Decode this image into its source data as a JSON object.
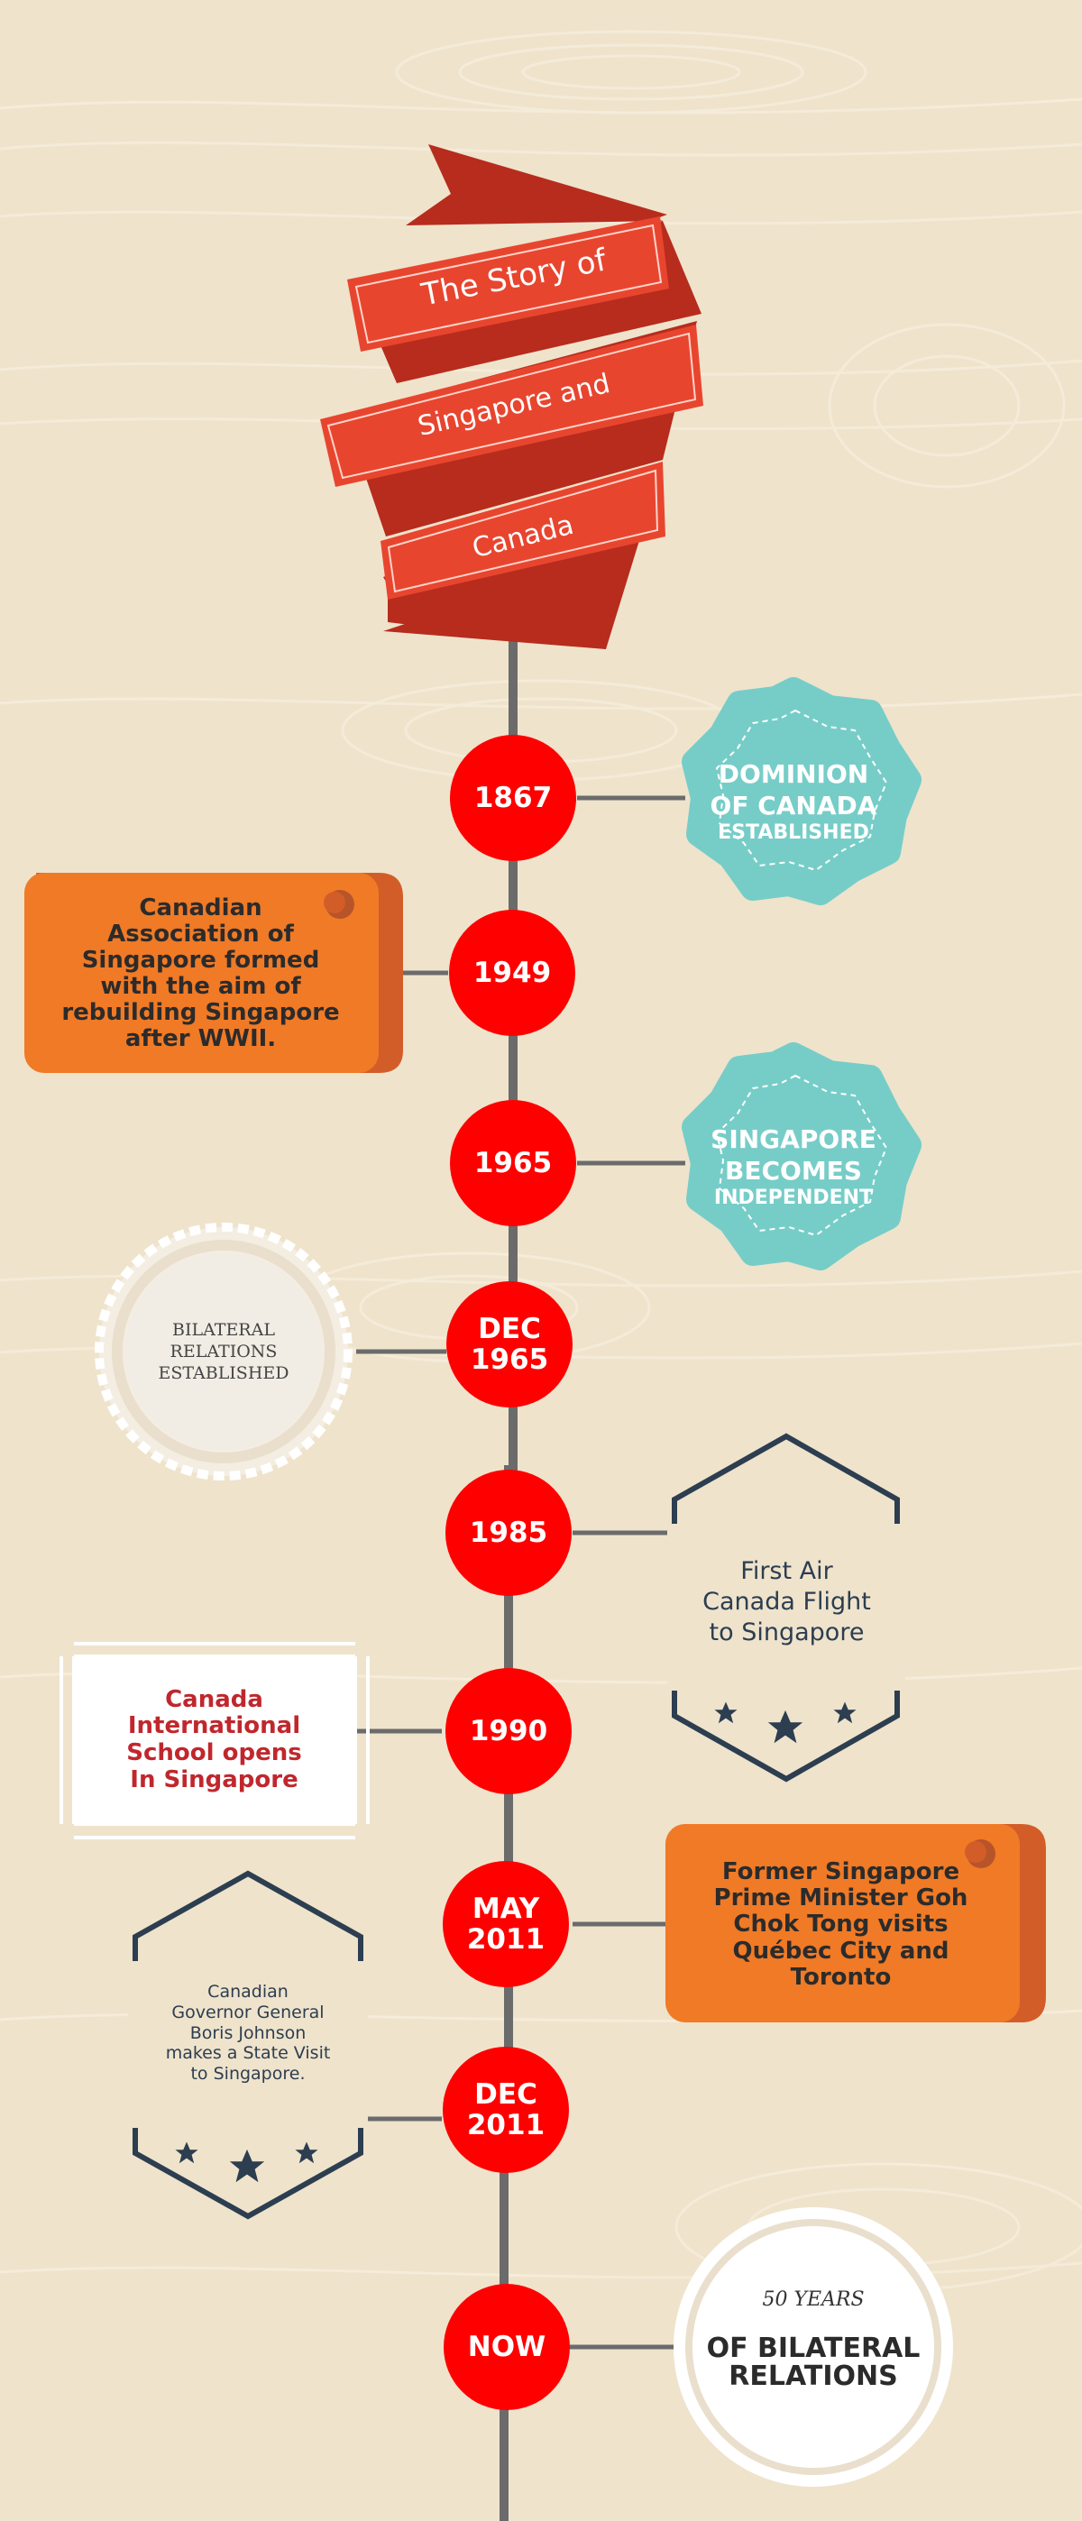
{
  "title": {
    "line1": "The Story of",
    "line2": "Singapore and",
    "line3": "Canada"
  },
  "colors": {
    "background": "#efe3cc",
    "ribbon": "#e8452f",
    "ribbon_dark": "#b72c1d",
    "circle": "#fe0000",
    "teal": "#76cdc8",
    "orange": "#f07a26",
    "navy": "#2c3e50"
  },
  "events": [
    {
      "date": "1867",
      "label": {
        "main": "DOMINION\nOF CANADA",
        "sub": "ESTABLISHED"
      }
    },
    {
      "date": "1949",
      "label": "Canadian\nAssociation of\nSingapore formed\nwith the aim of\nrebuilding Singapore\nafter WWII."
    },
    {
      "date": "1965",
      "label": {
        "main": "SINGAPORE\nBECOMES",
        "sub": "INDEPENDENT"
      }
    },
    {
      "date": "DEC\n1965",
      "label": "BILATERAL\nRELATIONS\nESTABLISHED"
    },
    {
      "date": "1985",
      "label": "First Air\nCanada Flight\nto Singapore"
    },
    {
      "date": "1990",
      "label": "Canada\nInternational\nSchool opens\nIn Singapore"
    },
    {
      "date": "MAY\n2011",
      "label": "Former Singapore\nPrime Minister Goh\nChok Tong visits\nQuébec City and\nToronto"
    },
    {
      "date": "DEC\n2011",
      "label": "Canadian\nGovernor General\nBoris Johnson\nmakes a State Visit\nto Singapore."
    },
    {
      "date": "NOW",
      "label": {
        "top": "50 YEARS",
        "main": "OF BILATERAL\nRELATIONS"
      }
    }
  ],
  "icons": [
    "star-icon",
    "pin-hole-icon"
  ]
}
